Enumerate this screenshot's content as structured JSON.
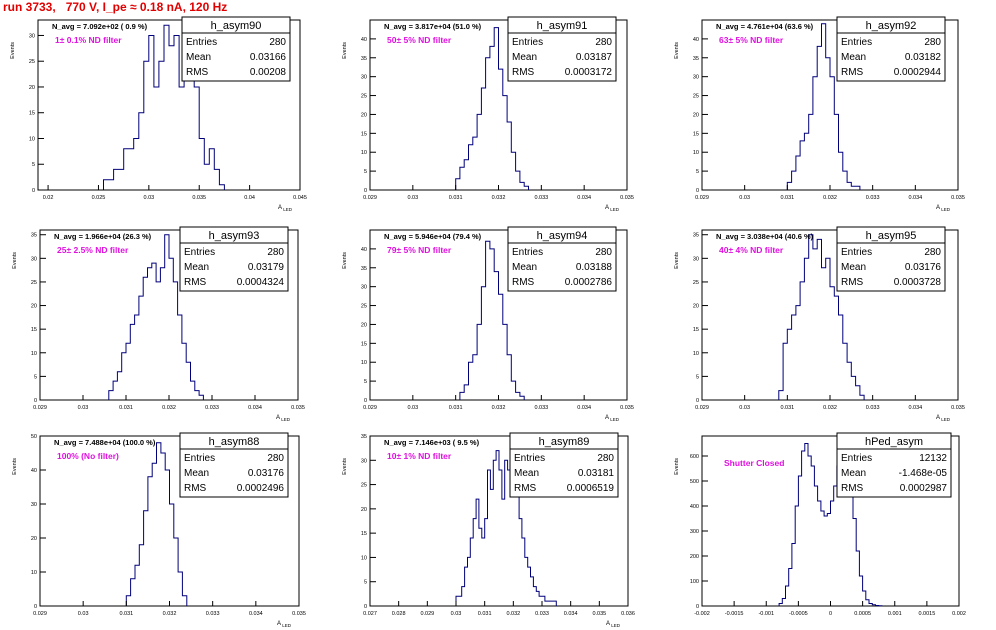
{
  "page_title": "run 3733,   770 V, I_pe ≈ 0.18 nA, 120 Hz",
  "chart_data": [
    {
      "type": "histogram",
      "name": "h_asym90",
      "navg_text": "N_avg = 7.092e+02 ( 0.9 %)",
      "filter_label": "1± 0.1% ND filter",
      "stats": {
        "entries": "280",
        "mean": "0.03166",
        "rms": "0.00208"
      },
      "ylabel": "Events",
      "xlabel": "A_LED",
      "xlim": [
        0.019,
        0.045
      ],
      "ylim": [
        0,
        33
      ],
      "xticks": [
        0.02,
        0.025,
        0.03,
        0.035,
        0.04,
        0.045
      ],
      "xtick_labels": [
        "0.02",
        "0.025",
        "0.03",
        "0.035",
        "0.04",
        "0.045"
      ],
      "yticks": [
        0,
        5,
        10,
        15,
        20,
        25,
        30
      ],
      "bin_edges": [
        0.0255,
        0.0265,
        0.0275,
        0.0285,
        0.029,
        0.0295,
        0.03,
        0.0305,
        0.031,
        0.0315,
        0.032,
        0.0325,
        0.033,
        0.0335,
        0.034,
        0.0345,
        0.035,
        0.0355,
        0.036,
        0.0365,
        0.037,
        0.0375
      ],
      "counts": [
        2,
        4,
        8,
        10,
        15,
        25,
        30,
        20,
        25,
        32,
        28,
        30,
        20,
        25,
        32,
        20,
        10,
        5,
        8,
        4,
        1
      ]
    },
    {
      "type": "histogram",
      "name": "h_asym91",
      "navg_text": "N_avg = 3.817e+04 (51.0 %)",
      "filter_label": "50± 5% ND filter",
      "stats": {
        "entries": "280",
        "mean": "0.03187",
        "rms": "0.0003172"
      },
      "ylabel": "Events",
      "xlabel": "A_LED",
      "xlim": [
        0.029,
        0.035
      ],
      "ylim": [
        0,
        45
      ],
      "xticks": [
        0.029,
        0.03,
        0.031,
        0.032,
        0.033,
        0.034,
        0.035
      ],
      "xtick_labels": [
        "0.029",
        "0.03",
        "0.031",
        "0.032",
        "0.033",
        "0.034",
        "0.035"
      ],
      "yticks": [
        0,
        5,
        10,
        15,
        20,
        25,
        30,
        35,
        40
      ],
      "bin_edges": [
        0.031,
        0.0311,
        0.0312,
        0.0313,
        0.0314,
        0.0315,
        0.0316,
        0.0317,
        0.0318,
        0.0319,
        0.032,
        0.0321,
        0.0322,
        0.0323,
        0.0324,
        0.0325,
        0.0326,
        0.0327
      ],
      "counts": [
        3,
        6,
        8,
        12,
        14,
        20,
        27,
        35,
        38,
        43,
        32,
        25,
        18,
        10,
        5,
        2,
        1
      ]
    },
    {
      "type": "histogram",
      "name": "h_asym92",
      "navg_text": "N_avg = 4.761e+04 (63.6 %)",
      "filter_label": "63± 5% ND filter",
      "stats": {
        "entries": "280",
        "mean": "0.03182",
        "rms": "0.0002944"
      },
      "ylabel": "Events",
      "xlabel": "A_LED",
      "xlim": [
        0.029,
        0.035
      ],
      "ylim": [
        0,
        45
      ],
      "xticks": [
        0.029,
        0.03,
        0.031,
        0.032,
        0.033,
        0.034,
        0.035
      ],
      "xtick_labels": [
        "0.029",
        "0.03",
        "0.031",
        "0.032",
        "0.033",
        "0.034",
        "0.035"
      ],
      "yticks": [
        0,
        5,
        10,
        15,
        20,
        25,
        30,
        35,
        40
      ],
      "bin_edges": [
        0.031,
        0.0311,
        0.0312,
        0.0313,
        0.0314,
        0.0315,
        0.0316,
        0.0317,
        0.0318,
        0.0319,
        0.032,
        0.0321,
        0.0322,
        0.0323,
        0.0324,
        0.0325,
        0.0326,
        0.0327
      ],
      "counts": [
        2,
        5,
        9,
        13,
        15,
        20,
        30,
        38,
        44,
        35,
        30,
        20,
        10,
        5,
        2,
        1,
        1
      ]
    },
    {
      "type": "histogram",
      "name": "h_asym93",
      "navg_text": "N_avg = 1.966e+04 (26.3 %)",
      "filter_label": "25± 2.5% ND filter",
      "stats": {
        "entries": "280",
        "mean": "0.03179",
        "rms": "0.0004324"
      },
      "ylabel": "Events",
      "xlabel": "A_LED",
      "xlim": [
        0.029,
        0.035
      ],
      "ylim": [
        0,
        36
      ],
      "xticks": [
        0.029,
        0.03,
        0.031,
        0.032,
        0.033,
        0.034,
        0.035
      ],
      "xtick_labels": [
        "0.029",
        "0.03",
        "0.031",
        "0.032",
        "0.033",
        "0.034",
        "0.035"
      ],
      "yticks": [
        0,
        5,
        10,
        15,
        20,
        25,
        30,
        35
      ],
      "bin_edges": [
        0.0306,
        0.0307,
        0.0308,
        0.0309,
        0.031,
        0.0311,
        0.0312,
        0.0313,
        0.0314,
        0.0315,
        0.0316,
        0.0317,
        0.0318,
        0.0319,
        0.032,
        0.0321,
        0.0322,
        0.0323,
        0.0324,
        0.0325,
        0.0326,
        0.0327,
        0.0328
      ],
      "counts": [
        2,
        4,
        6,
        10,
        12,
        16,
        18,
        22,
        26,
        28,
        29,
        25,
        28,
        35,
        30,
        25,
        18,
        12,
        8,
        4,
        2,
        1
      ]
    },
    {
      "type": "histogram",
      "name": "h_asym94",
      "navg_text": "N_avg = 5.946e+04 (79.4 %)",
      "filter_label": "79± 5% ND filter",
      "stats": {
        "entries": "280",
        "mean": "0.03188",
        "rms": "0.0002786"
      },
      "ylabel": "Events",
      "xlabel": "A_LED",
      "xlim": [
        0.029,
        0.035
      ],
      "ylim": [
        0,
        45
      ],
      "xticks": [
        0.029,
        0.03,
        0.031,
        0.032,
        0.033,
        0.034,
        0.035
      ],
      "xtick_labels": [
        "0.029",
        "0.03",
        "0.031",
        "0.032",
        "0.033",
        "0.034",
        "0.035"
      ],
      "yticks": [
        0,
        5,
        10,
        15,
        20,
        25,
        30,
        35,
        40
      ],
      "bin_edges": [
        0.0311,
        0.0312,
        0.0313,
        0.0314,
        0.0315,
        0.0316,
        0.0317,
        0.0318,
        0.0319,
        0.032,
        0.0321,
        0.0322,
        0.0323,
        0.0324,
        0.0325,
        0.0326
      ],
      "counts": [
        2,
        4,
        10,
        12,
        20,
        30,
        42,
        40,
        34,
        28,
        20,
        12,
        5,
        2,
        1
      ]
    },
    {
      "type": "histogram",
      "name": "h_asym95",
      "navg_text": "N_avg = 3.038e+04 (40.6 %)",
      "filter_label": "40± 4% ND filter",
      "stats": {
        "entries": "280",
        "mean": "0.03176",
        "rms": "0.0003728"
      },
      "ylabel": "Events",
      "xlabel": "A_LED",
      "xlim": [
        0.029,
        0.035
      ],
      "ylim": [
        0,
        36
      ],
      "xticks": [
        0.029,
        0.03,
        0.031,
        0.032,
        0.033,
        0.034,
        0.035
      ],
      "xtick_labels": [
        "0.029",
        "0.03",
        "0.031",
        "0.032",
        "0.033",
        "0.034",
        "0.035"
      ],
      "yticks": [
        0,
        5,
        10,
        15,
        20,
        25,
        30,
        35
      ],
      "bin_edges": [
        0.0308,
        0.0309,
        0.031,
        0.0311,
        0.0312,
        0.0313,
        0.0314,
        0.0315,
        0.0316,
        0.0317,
        0.0318,
        0.0319,
        0.032,
        0.0321,
        0.0322,
        0.0323,
        0.0324,
        0.0325,
        0.0326,
        0.0327,
        0.0328
      ],
      "counts": [
        2,
        12,
        15,
        18,
        20,
        25,
        30,
        35,
        32,
        34,
        28,
        30,
        24,
        22,
        18,
        12,
        8,
        5,
        3,
        1
      ]
    },
    {
      "type": "histogram",
      "name": "h_asym88",
      "navg_text": "N_avg = 7.488e+04 (100.0 %)",
      "filter_label": "100% (No filter)",
      "stats": {
        "entries": "280",
        "mean": "0.03176",
        "rms": "0.0002496"
      },
      "ylabel": "Events",
      "xlabel": "A_LED",
      "xlim": [
        0.029,
        0.035
      ],
      "ylim": [
        0,
        50
      ],
      "xticks": [
        0.029,
        0.03,
        0.031,
        0.032,
        0.033,
        0.034,
        0.035
      ],
      "xtick_labels": [
        "0.029",
        "0.03",
        "0.031",
        "0.032",
        "0.033",
        "0.034",
        "0.035"
      ],
      "yticks": [
        0,
        10,
        20,
        30,
        40,
        50
      ],
      "bin_edges": [
        0.031,
        0.0311,
        0.0312,
        0.0313,
        0.0314,
        0.0315,
        0.0316,
        0.0317,
        0.0318,
        0.0319,
        0.032,
        0.0321,
        0.0322,
        0.0323,
        0.0324
      ],
      "counts": [
        3,
        8,
        12,
        18,
        28,
        38,
        42,
        48,
        45,
        40,
        30,
        20,
        10,
        3
      ]
    },
    {
      "type": "histogram",
      "name": "h_asym89",
      "navg_text": "N_avg = 7.146e+03 ( 9.5 %)",
      "filter_label": "10± 1% ND filter",
      "stats": {
        "entries": "280",
        "mean": "0.03181",
        "rms": "0.0006519"
      },
      "ylabel": "Events",
      "xlabel": "A_LED",
      "xlim": [
        0.027,
        0.036
      ],
      "ylim": [
        0,
        35
      ],
      "xticks": [
        0.027,
        0.028,
        0.029,
        0.03,
        0.031,
        0.032,
        0.033,
        0.034,
        0.035,
        0.036
      ],
      "xtick_labels": [
        "0.027",
        "0.028",
        "0.029",
        "0.03",
        "0.031",
        "0.032",
        "0.033",
        "0.034",
        "0.035",
        "0.036"
      ],
      "yticks": [
        0,
        5,
        10,
        15,
        20,
        25,
        30,
        35
      ],
      "bin_edges": [
        0.03,
        0.0301,
        0.0302,
        0.0303,
        0.0304,
        0.0305,
        0.0306,
        0.0307,
        0.0308,
        0.0309,
        0.031,
        0.0311,
        0.0312,
        0.0313,
        0.0314,
        0.0315,
        0.0316,
        0.0317,
        0.0318,
        0.0319,
        0.032,
        0.0321,
        0.0322,
        0.0323,
        0.0324,
        0.0325,
        0.0326,
        0.0327,
        0.0328,
        0.0329,
        0.033,
        0.0331,
        0.0332,
        0.0333,
        0.0334,
        0.0335
      ],
      "counts": [
        2,
        2,
        4,
        8,
        10,
        14,
        18,
        22,
        16,
        14,
        18,
        28,
        24,
        30,
        32,
        28,
        22,
        30,
        28,
        30,
        32,
        24,
        18,
        14,
        10,
        8,
        6,
        4,
        3,
        2,
        2,
        1,
        1,
        1,
        1
      ]
    },
    {
      "type": "histogram",
      "name": "hPed_asym",
      "navg_text": "",
      "filter_label": "Shutter Closed",
      "stats": {
        "entries": "12132",
        "mean": "-1.468e-05",
        "rms": "0.0002987"
      },
      "ylabel": "Events",
      "xlabel": "",
      "xlim": [
        -0.002,
        0.002
      ],
      "ylim": [
        0,
        680
      ],
      "xticks": [
        -0.002,
        -0.0015,
        -0.001,
        -0.0005,
        0,
        0.0005,
        0.001,
        0.0015,
        0.002
      ],
      "xtick_labels": [
        "-0.002",
        "-0.0015",
        "-0.001",
        "-0.0005",
        "0",
        "0.0005",
        "0.001",
        "0.0015",
        "0.002"
      ],
      "yticks": [
        0,
        100,
        200,
        300,
        400,
        500,
        600
      ],
      "bin_edges": [
        -0.0008,
        -0.00075,
        -0.0007,
        -0.00065,
        -0.0006,
        -0.00055,
        -0.0005,
        -0.00045,
        -0.0004,
        -0.00035,
        -0.0003,
        -0.00025,
        -0.0002,
        -0.00015,
        -0.0001,
        -5e-05,
        0,
        5e-05,
        0.0001,
        0.00015,
        0.0002,
        0.00025,
        0.0003,
        0.00035,
        0.0004,
        0.00045,
        0.0005,
        0.00055,
        0.0006,
        0.00065,
        0.0007,
        0.00075,
        0.0008
      ],
      "counts": [
        10,
        30,
        80,
        150,
        250,
        400,
        520,
        620,
        650,
        600,
        560,
        480,
        420,
        380,
        360,
        370,
        420,
        480,
        560,
        600,
        610,
        580,
        470,
        350,
        220,
        120,
        60,
        25,
        10,
        5,
        2,
        1
      ]
    }
  ]
}
